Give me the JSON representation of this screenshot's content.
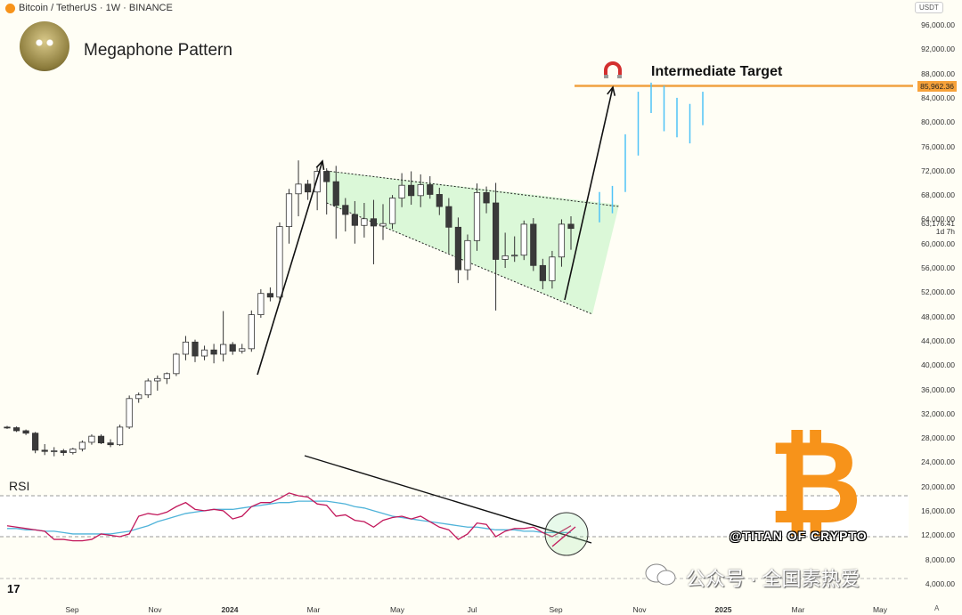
{
  "header": {
    "symbol": "Bitcoin / TetherUS · 1W · BINANCE"
  },
  "title": "Megaphone Pattern",
  "target_label": "Intermediate Target",
  "target_price": "85,962.36",
  "current_price": "63,176.41",
  "current_countdown": "1d 7h",
  "rsi_label": "RSI",
  "currency_label": "USDT",
  "handle": "@TITAN OF CRYPTO",
  "watermark": "公众号 · 全国素热爱",
  "colors": {
    "up": "#ffffff",
    "down": "#3a3a3a",
    "projection": "#4fc3f7",
    "target_line": "#f0a040",
    "rsi": "#c2185b",
    "rsi_ma": "#4fb3d9",
    "wedge_fill": "#c8f5c8",
    "bitcoin": "#f7931a"
  },
  "chart_data": {
    "type": "candlestick",
    "y_ticks": [
      "96,000.00",
      "92,000.00",
      "88,000.00",
      "84,000.00",
      "80,000.00",
      "76,000.00",
      "72,000.00",
      "68,000.00",
      "64,000.00",
      "60,000.00",
      "56,000.00",
      "52,000.00",
      "48,000.00",
      "44,000.00",
      "40,000.00",
      "36,000.00",
      "32,000.00",
      "28,000.00",
      "24,000.00",
      "20,000.00",
      "16,000.00",
      "12,000.00",
      "8,000.00",
      "4,000.00"
    ],
    "x_ticks": [
      "Sep",
      "Nov",
      "2024",
      "Mar",
      "May",
      "Jul",
      "Sep",
      "Nov",
      "2025",
      "Mar",
      "May"
    ],
    "ylim": [
      4000,
      96000
    ],
    "target_price": 85962.36,
    "candles": [
      [
        29800,
        30000,
        29500,
        29700
      ],
      [
        29700,
        29900,
        29000,
        29200
      ],
      [
        29200,
        29400,
        28500,
        28800
      ],
      [
        28800,
        29000,
        25500,
        26000
      ],
      [
        26000,
        27000,
        25200,
        25800
      ],
      [
        25800,
        26500,
        25000,
        25900
      ],
      [
        25900,
        26200,
        25100,
        25600
      ],
      [
        25600,
        26400,
        25300,
        26200
      ],
      [
        26200,
        27600,
        25800,
        27300
      ],
      [
        27300,
        28600,
        26900,
        28300
      ],
      [
        28300,
        28600,
        27000,
        27200
      ],
      [
        27200,
        27800,
        26500,
        26900
      ],
      [
        26900,
        30200,
        26700,
        29800
      ],
      [
        29800,
        35000,
        29500,
        34500
      ],
      [
        34500,
        35500,
        33800,
        35100
      ],
      [
        35100,
        37800,
        34600,
        37400
      ],
      [
        37400,
        38300,
        35800,
        37800
      ],
      [
        37800,
        38800,
        36900,
        38600
      ],
      [
        38600,
        42000,
        38200,
        41800
      ],
      [
        41800,
        44800,
        40800,
        43800
      ],
      [
        43800,
        44200,
        40500,
        41500
      ],
      [
        41500,
        43200,
        40800,
        42500
      ],
      [
        42500,
        43500,
        40300,
        41800
      ],
      [
        41800,
        48900,
        40600,
        43400
      ],
      [
        43400,
        43800,
        41700,
        42300
      ],
      [
        42300,
        43500,
        41900,
        42700
      ],
      [
        42700,
        49000,
        42200,
        48300
      ],
      [
        48300,
        52500,
        47800,
        51800
      ],
      [
        51800,
        52800,
        50500,
        51200
      ],
      [
        51200,
        63500,
        50800,
        62800
      ],
      [
        62800,
        69000,
        60000,
        68200
      ],
      [
        68200,
        73700,
        64500,
        69800
      ],
      [
        69800,
        70500,
        67200,
        68500
      ],
      [
        68500,
        72600,
        65500,
        71900
      ],
      [
        71900,
        72400,
        64800,
        70200
      ],
      [
        70200,
        72800,
        60800,
        66300
      ],
      [
        66300,
        67500,
        62000,
        64800
      ],
      [
        64800,
        67000,
        60000,
        63000
      ],
      [
        63000,
        66700,
        61000,
        64100
      ],
      [
        64100,
        67200,
        56600,
        62900
      ],
      [
        62900,
        66500,
        60600,
        63300
      ],
      [
        63300,
        68000,
        62400,
        67500
      ],
      [
        67500,
        71600,
        66000,
        69600
      ],
      [
        69600,
        71900,
        66400,
        67900
      ],
      [
        67900,
        71400,
        66000,
        69700
      ],
      [
        69700,
        71100,
        67400,
        68100
      ],
      [
        68100,
        69200,
        64700,
        66100
      ],
      [
        66100,
        67500,
        58400,
        62700
      ],
      [
        62700,
        64300,
        53500,
        55700
      ],
      [
        55700,
        61500,
        54000,
        60500
      ],
      [
        60500,
        69900,
        58800,
        68400
      ],
      [
        68400,
        69400,
        65000,
        66700
      ],
      [
        66700,
        70000,
        49000,
        57400
      ],
      [
        57400,
        61800,
        56000,
        58000
      ],
      [
        58000,
        61200,
        57000,
        58100
      ],
      [
        58100,
        63800,
        57300,
        63200
      ],
      [
        63200,
        64200,
        55500,
        56400
      ],
      [
        56400,
        57500,
        52500,
        53900
      ],
      [
        53900,
        58800,
        52600,
        57800
      ],
      [
        57800,
        64000,
        56200,
        63200
      ],
      [
        63200,
        64500,
        59000,
        62500
      ]
    ],
    "projection": [
      [
        64000,
        68500,
        63500,
        68000
      ],
      [
        65500,
        69500,
        65000,
        69000
      ],
      [
        69000,
        78000,
        68500,
        77500
      ],
      [
        75000,
        85000,
        74500,
        84500
      ],
      [
        82000,
        86500,
        81500,
        86000
      ],
      [
        79000,
        86000,
        78500,
        85500
      ],
      [
        78000,
        84000,
        77500,
        83000
      ],
      [
        77000,
        83000,
        76500,
        82500
      ],
      [
        80000,
        85000,
        79500,
        84500
      ]
    ],
    "rsi": [
      48,
      47,
      46,
      45,
      44,
      38,
      38,
      37,
      37,
      38,
      42,
      41,
      40,
      42,
      55,
      57,
      56,
      58,
      62,
      65,
      60,
      59,
      60,
      59,
      53,
      55,
      62,
      65,
      65,
      68,
      72,
      70,
      69,
      64,
      63,
      55,
      56,
      52,
      51,
      47,
      52,
      54,
      55,
      53,
      55,
      51,
      47,
      45,
      38,
      42,
      50,
      49,
      40,
      44,
      46,
      46,
      47,
      43,
      40,
      44,
      48
    ],
    "rsi_ma": [
      46,
      46,
      45,
      45,
      44,
      44,
      43,
      42,
      42,
      42,
      42,
      42,
      43,
      44,
      46,
      48,
      51,
      53,
      55,
      57,
      58,
      59,
      60,
      60,
      60,
      61,
      62,
      63,
      64,
      65,
      65,
      66,
      66,
      66,
      66,
      65,
      64,
      62,
      61,
      59,
      57,
      55,
      54,
      53,
      52,
      51,
      50,
      49,
      48,
      47,
      47,
      46,
      45,
      45,
      45,
      44,
      44,
      43,
      43,
      43,
      43
    ]
  }
}
